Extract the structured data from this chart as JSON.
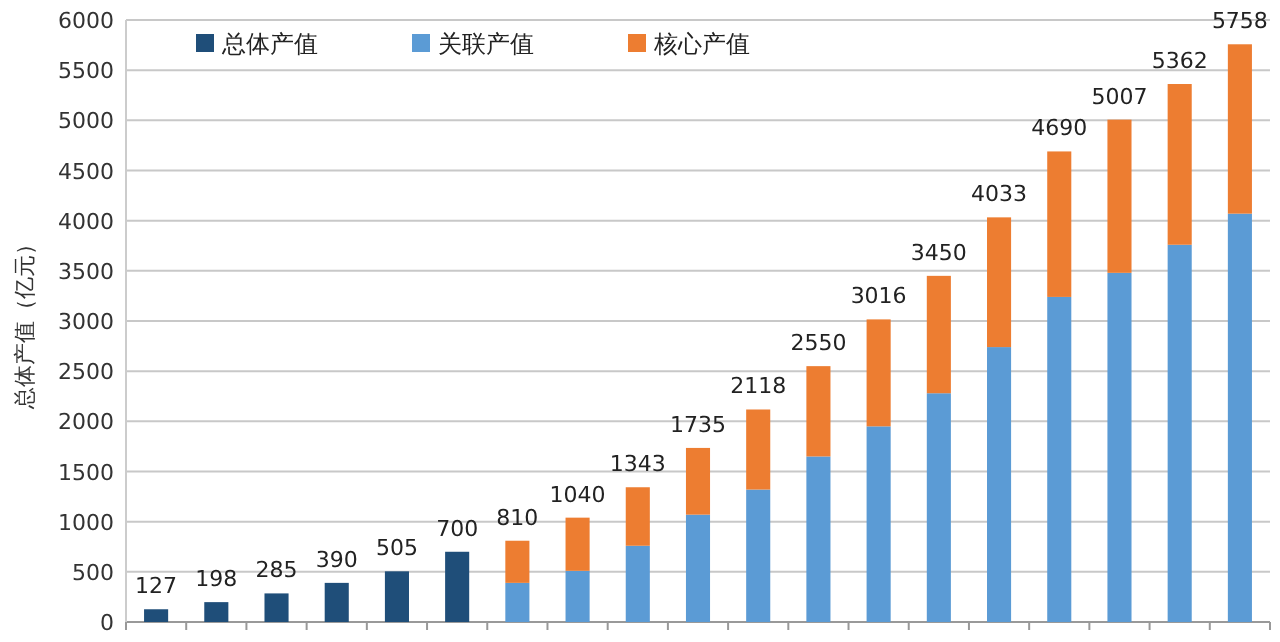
{
  "chart_data": {
    "type": "bar",
    "stacked": true,
    "ylabel": "总体产值（亿元）",
    "categories": [
      null,
      null,
      null,
      null,
      null,
      null,
      null,
      null,
      null,
      null,
      null,
      null,
      null,
      null,
      null,
      null,
      null,
      null,
      null
    ],
    "series": [
      {
        "name": "总体产值",
        "color": "#1f4e79",
        "values": [
          127,
          198,
          285,
          390,
          505,
          700,
          null,
          null,
          null,
          null,
          null,
          null,
          null,
          null,
          null,
          null,
          null,
          null,
          null
        ]
      },
      {
        "name": "关联产值",
        "color": "#5b9bd5",
        "values": [
          null,
          null,
          null,
          null,
          null,
          null,
          390,
          510,
          760,
          1070,
          1320,
          1650,
          1950,
          2280,
          2740,
          3240,
          3480,
          3760,
          4070
        ]
      },
      {
        "name": "核心产值",
        "color": "#ed7d31",
        "values": [
          null,
          null,
          null,
          null,
          null,
          null,
          420,
          530,
          583,
          665,
          798,
          900,
          1066,
          1170,
          1293,
          1450,
          1527,
          1602,
          1688
        ]
      }
    ],
    "totals": [
      "127",
      "198",
      "285",
      "390",
      "505",
      "700",
      "810",
      "1040",
      "1343",
      "1735",
      "2118",
      "2550",
      "3016",
      "3450",
      "4033",
      "4690",
      "5007",
      "5362",
      "5758"
    ],
    "ylim": [
      0,
      6000
    ],
    "yticks": [
      0,
      500,
      1000,
      1500,
      2000,
      2500,
      3000,
      3500,
      4000,
      4500,
      5000,
      5500,
      6000
    ],
    "grid": "y",
    "legend": "top left"
  }
}
